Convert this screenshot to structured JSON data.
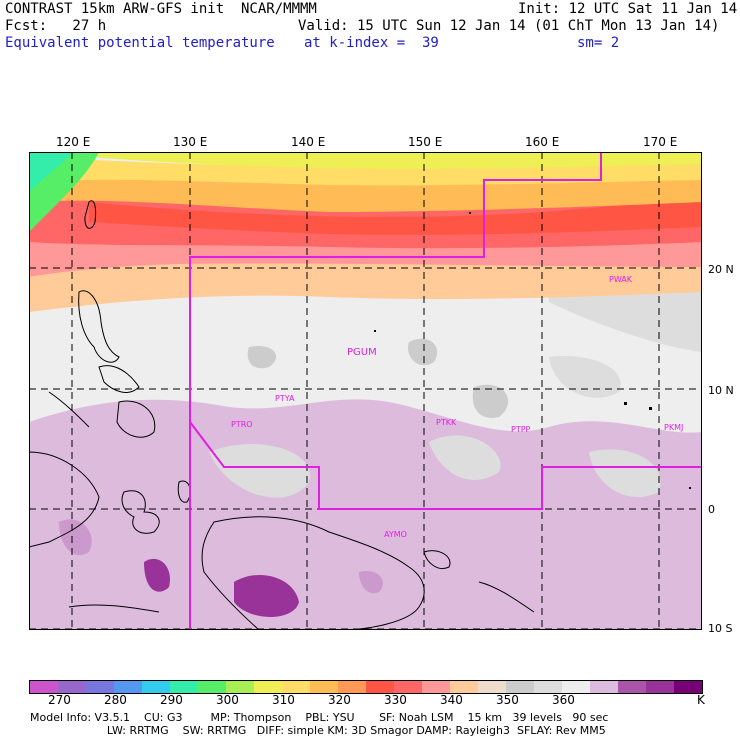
{
  "header": {
    "line1_left": "CONTRAST 15km ARW-GFS init  NCAR/MMMM",
    "line1_right": "Init: 12 UTC Sat 11 Jan 14",
    "line2_left": "Fcst:   27 h",
    "line2_right": "Valid: 15 UTC Sun 12 Jan 14 (01 ChT Mon 13 Jan 14)",
    "line3_left": "Equivalent potential temperature",
    "line3_mid": "at k-index =  39",
    "line3_right": "sm= 2"
  },
  "map": {
    "lon_labels": [
      "120 E",
      "130 E",
      "140 E",
      "150 E",
      "160 E",
      "170 E"
    ],
    "lat_labels": [
      "20 N",
      "10 N",
      "0",
      "10 S"
    ],
    "stations": [
      "PWAK",
      "PGUM",
      "PTYA",
      "PTRO",
      "PTKK",
      "PTPP",
      "PKMJ",
      "AYMO"
    ],
    "boundary_color": "#e020e0",
    "station_color": "#e020e0"
  },
  "colorbar": {
    "colors": [
      "#cc55cc",
      "#9966cc",
      "#7777dd",
      "#5599ee",
      "#33ccee",
      "#33eeaa",
      "#55ee66",
      "#aaee55",
      "#eeee55",
      "#ffdd66",
      "#ffbb55",
      "#ff9955",
      "#ff5544",
      "#ff6666",
      "#ff9999",
      "#ffcc99",
      "#eeddcc",
      "#cccccc",
      "#dddddd",
      "#eeeeee",
      "#ddbbdd",
      "#aa55aa",
      "#993399",
      "#770077"
    ],
    "labels": [
      "270",
      "280",
      "290",
      "300",
      "310",
      "320",
      "330",
      "340",
      "350",
      "360"
    ],
    "unit": "K"
  },
  "model_info": {
    "line1": "Model Info: V3.5.1    CU: G3        MP: Thompson    PBL: YSU       SF: Noah LSM    15 km   39 levels   90 sec",
    "line2": "                      LW: RRTMG    SW: RRTMG   DIFF: simple KM: 3D Smagor DAMP: Rayleigh3  SFLAY: Rev MM5"
  }
}
